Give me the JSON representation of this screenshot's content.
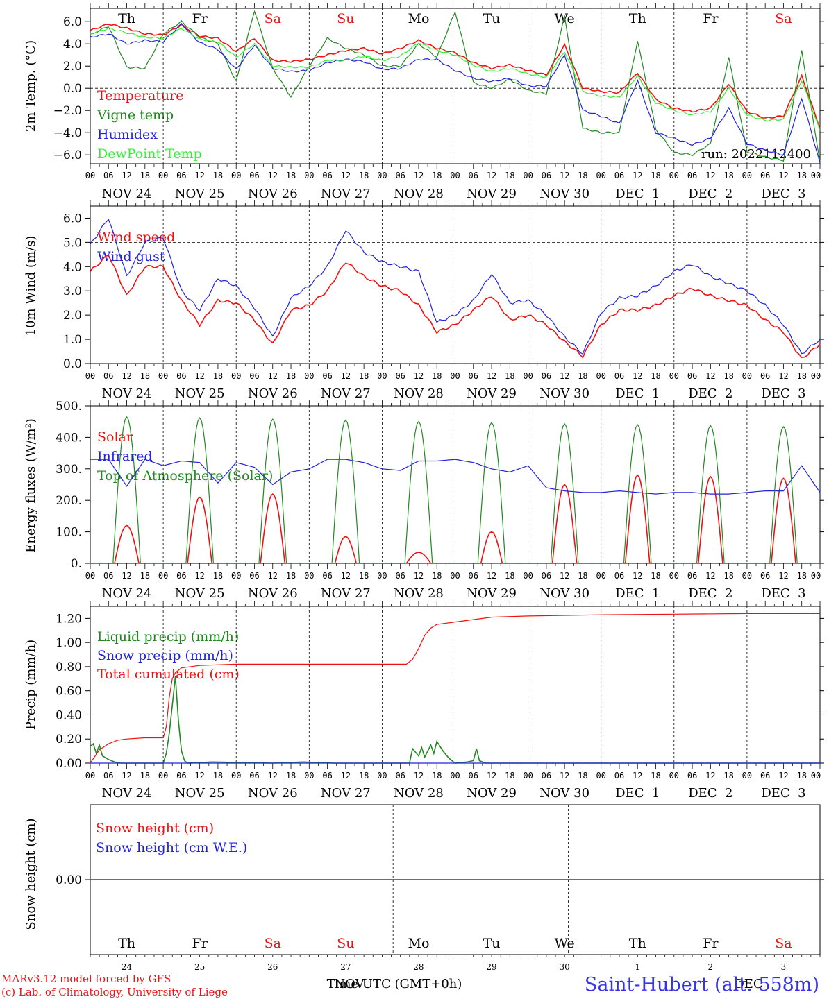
{
  "colors": {
    "temperature": "#ee1111",
    "vigne": "#228822",
    "humidex": "#2222dd",
    "dewpoint": "#33ee33",
    "wind_speed": "#ee1111",
    "wind_gust": "#2222dd",
    "solar": "#ee1111",
    "infrared": "#2222dd",
    "toa": "#228822",
    "liquid": "#228822",
    "snow": "#2222dd",
    "total": "#ee1111",
    "snow_cm": "#ee1111",
    "snow_we": "#2222dd",
    "snow_line": "#8833aa",
    "weekend": "#ee1111",
    "station": "#3333ee"
  },
  "days": {
    "weekday_labels": [
      "Th",
      "Fr",
      "Sa",
      "Su",
      "Mo",
      "Tu",
      "We",
      "Th",
      "Fr",
      "Sa"
    ],
    "weekend_flags": [
      false,
      false,
      true,
      true,
      false,
      false,
      false,
      false,
      false,
      true
    ],
    "date_labels": [
      "NOV 24",
      "NOV 25",
      "NOV 26",
      "NOV 27",
      "NOV 28",
      "NOV 29",
      "NOV 30",
      "DEC  1",
      "DEC  2",
      "DEC  3"
    ],
    "hour_labels": [
      "00",
      "06",
      "12",
      "18"
    ],
    "final_hour_label": "00",
    "day_numbers": [
      "24",
      "25",
      "26",
      "27",
      "28",
      "29",
      "30",
      "1",
      "2",
      "3"
    ]
  },
  "footer": {
    "model_line": "MARv3.12 model forced by GFS",
    "copyright_line": "(c) Lab. of Climatology, University of Liege",
    "time_axis_label": "Time UTC (GMT+0h)",
    "overlap_month_left": "NOV",
    "overlap_month_right": "DEC",
    "station": "Saint-Hubert (alt. 558m)"
  },
  "chart_data": [
    {
      "type": "line",
      "ylabel": "2m Temp. (°C)",
      "ylim": [
        -6.8,
        7.2
      ],
      "yticks": [
        "6.0",
        "4.0",
        "2.0",
        "0.0",
        "−2.0",
        "−4.0",
        "−6.0"
      ],
      "ytick_values": [
        6,
        4,
        2,
        0,
        -2,
        -4,
        -6
      ],
      "reference_line": 0,
      "run_label": "run: 2022112400",
      "x_hours_from_start": [
        0,
        6,
        12,
        18,
        24,
        30,
        36,
        42,
        48,
        54,
        60,
        66,
        72,
        78,
        84,
        90,
        96,
        102,
        108,
        114,
        120,
        126,
        132,
        138,
        144,
        150,
        156,
        162,
        168,
        174,
        180,
        186,
        192,
        198,
        204,
        210,
        216,
        222,
        228,
        234,
        240
      ],
      "series": [
        {
          "name": "Temperature",
          "color_key": "temperature",
          "values": [
            5.2,
            5.8,
            5.4,
            4.9,
            4.8,
            5.7,
            4.7,
            4.5,
            3.3,
            4.5,
            2.5,
            2.4,
            2.6,
            3.0,
            3.4,
            3.6,
            3.1,
            3.6,
            4.3,
            3.6,
            3.2,
            2.3,
            1.8,
            2.1,
            1.6,
            1.2,
            3.9,
            0.0,
            -0.3,
            -0.4,
            1.4,
            -1.0,
            -1.8,
            -2.1,
            -1.8,
            0.4,
            -2.1,
            -2.7,
            -2.5,
            1.1,
            -3.6
          ]
        },
        {
          "name": "Vigne temp",
          "color_key": "vigne",
          "values": [
            4.8,
            5.6,
            1.9,
            1.8,
            4.9,
            6.0,
            4.6,
            4.0,
            0.6,
            7.0,
            1.8,
            -0.8,
            2.0,
            4.5,
            3.6,
            3.0,
            2.0,
            2.0,
            4.0,
            2.8,
            6.9,
            0.5,
            0.0,
            0.8,
            -0.2,
            -0.5,
            6.5,
            -3.6,
            -4.0,
            -4.0,
            4.3,
            -3.7,
            -5.8,
            -6.0,
            -5.0,
            2.8,
            -5.7,
            -6.2,
            -6.5,
            3.4,
            -6.6
          ]
        },
        {
          "name": "Humidex",
          "color_key": "humidex",
          "values": [
            4.6,
            4.9,
            4.0,
            4.3,
            4.2,
            5.8,
            4.1,
            3.5,
            1.7,
            3.9,
            1.8,
            1.5,
            1.6,
            2.3,
            2.6,
            2.4,
            1.7,
            1.8,
            2.6,
            2.6,
            1.6,
            0.9,
            0.6,
            0.9,
            0.2,
            0.2,
            3.0,
            -2.0,
            -2.5,
            -3.2,
            0.7,
            -4.0,
            -4.5,
            -5.1,
            -4.5,
            -1.8,
            -5.0,
            -5.6,
            -6.0,
            -0.9,
            -6.7
          ]
        },
        {
          "name": "DewPoint Temp",
          "color_key": "dewpoint",
          "values": [
            4.9,
            5.4,
            5.0,
            4.6,
            4.5,
            5.4,
            4.4,
            4.2,
            2.8,
            4.0,
            2.0,
            1.9,
            1.9,
            2.5,
            2.5,
            2.9,
            2.5,
            2.9,
            4.1,
            3.4,
            3.0,
            2.1,
            1.5,
            1.8,
            1.3,
            1.0,
            3.3,
            -0.3,
            -0.7,
            -0.8,
            1.1,
            -1.3,
            -2.0,
            -2.4,
            -2.1,
            0.0,
            -2.4,
            -2.9,
            -2.8,
            0.7,
            -3.8
          ]
        }
      ]
    },
    {
      "type": "line",
      "ylabel": "10m Wind (m/s)",
      "ylim": [
        0,
        6.5
      ],
      "yticks": [
        "6.0",
        "5.0",
        "4.0",
        "3.0",
        "2.0",
        "1.0",
        "0.0"
      ],
      "ytick_values": [
        6,
        5,
        4,
        3,
        2,
        1,
        0
      ],
      "reference_line": 5,
      "x_hours_from_start": [
        0,
        6,
        12,
        18,
        24,
        30,
        36,
        42,
        48,
        54,
        60,
        66,
        72,
        78,
        84,
        90,
        96,
        102,
        108,
        114,
        120,
        126,
        132,
        138,
        144,
        150,
        156,
        162,
        168,
        174,
        180,
        186,
        192,
        198,
        204,
        210,
        216,
        222,
        228,
        234,
        240
      ],
      "series": [
        {
          "name": "Wind speed",
          "color_key": "wind_speed",
          "values": [
            3.8,
            4.5,
            2.8,
            4.0,
            4.0,
            2.6,
            1.6,
            2.6,
            2.5,
            1.8,
            0.8,
            2.2,
            2.4,
            3.0,
            4.2,
            3.6,
            3.2,
            3.0,
            2.4,
            1.3,
            1.6,
            2.2,
            2.8,
            1.8,
            2.0,
            1.6,
            0.9,
            0.3,
            1.6,
            2.2,
            2.2,
            2.4,
            2.8,
            3.1,
            2.8,
            2.6,
            2.4,
            1.8,
            1.3,
            0.2,
            0.8
          ]
        },
        {
          "name": "Wind gust",
          "color_key": "wind_gust",
          "values": [
            4.9,
            6.0,
            3.6,
            5.0,
            5.2,
            3.0,
            2.2,
            3.5,
            3.2,
            2.3,
            1.1,
            2.7,
            3.2,
            4.0,
            5.5,
            4.6,
            4.2,
            4.0,
            3.8,
            1.7,
            2.0,
            2.6,
            3.7,
            2.5,
            2.6,
            2.0,
            1.1,
            0.4,
            2.1,
            2.7,
            2.8,
            3.2,
            3.8,
            4.1,
            3.6,
            3.3,
            3.0,
            2.4,
            1.6,
            0.4,
            1.0
          ]
        }
      ]
    },
    {
      "type": "line",
      "ylabel": "Energy fluxes (W/m²)",
      "ylim": [
        0,
        500
      ],
      "yticks": [
        "500.",
        "400.",
        "300.",
        "200.",
        "100.",
        "0."
      ],
      "ytick_values": [
        500,
        400,
        300,
        200,
        100,
        0
      ],
      "x_hours_from_start": [
        0,
        6,
        12,
        18,
        24,
        30,
        36,
        42,
        48,
        54,
        60,
        66,
        72,
        78,
        84,
        90,
        96,
        102,
        108,
        114,
        120,
        126,
        132,
        138,
        144,
        150,
        156,
        162,
        168,
        174,
        180,
        186,
        192,
        198,
        204,
        210,
        216,
        222,
        228,
        234,
        240
      ],
      "daily_peak_hour": 12,
      "series": [
        {
          "name": "Solar",
          "color_key": "solar",
          "daily_peaks": [
            120,
            210,
            220,
            85,
            35,
            100,
            250,
            280,
            275,
            270
          ],
          "daily_half_width_hours": [
            4,
            4,
            4,
            3.5,
            4,
            3.5,
            4,
            4,
            4,
            4
          ]
        },
        {
          "name": "Infrared",
          "color_key": "infrared",
          "values": [
            330,
            330,
            245,
            330,
            310,
            325,
            320,
            255,
            320,
            305,
            250,
            290,
            300,
            330,
            330,
            320,
            300,
            295,
            325,
            325,
            330,
            320,
            300,
            290,
            310,
            240,
            230,
            225,
            225,
            230,
            225,
            220,
            225,
            225,
            220,
            220,
            225,
            230,
            230,
            310,
            225
          ]
        },
        {
          "name": "Top of Atmosphere (Solar)",
          "color_key": "toa",
          "daily_peaks": [
            465,
            462,
            458,
            455,
            450,
            447,
            443,
            440,
            437,
            434
          ],
          "daily_half_width_hours": [
            4.5,
            4.5,
            4.5,
            4.5,
            4.5,
            4.5,
            4.5,
            4.5,
            4.5,
            4.5
          ]
        }
      ]
    },
    {
      "type": "line",
      "ylabel": "Precip (mm/h)",
      "ylim": [
        0,
        1.3
      ],
      "yticks": [
        "1.20",
        "1.00",
        "0.80",
        "0.60",
        "0.40",
        "0.20",
        "0.00"
      ],
      "ytick_values": [
        1.2,
        1.0,
        0.8,
        0.6,
        0.4,
        0.2,
        0.0
      ],
      "series": [
        {
          "name": "Liquid precip (mm/h)",
          "color_key": "liquid",
          "x": [
            0,
            1,
            2,
            3,
            4,
            6,
            8,
            10,
            24,
            25,
            26,
            27,
            28,
            29,
            30,
            31,
            32,
            40,
            60,
            70,
            80,
            90,
            100,
            105,
            106,
            108,
            109,
            110,
            112,
            113,
            114,
            116,
            118,
            120,
            124,
            126,
            127,
            128,
            130,
            140,
            160,
            200,
            240
          ],
          "values": [
            0.14,
            0.16,
            0.08,
            0.15,
            0.06,
            0.03,
            0.01,
            0.0,
            0.0,
            0.08,
            0.25,
            0.48,
            0.72,
            0.35,
            0.1,
            0.02,
            0.0,
            0.01,
            0.0,
            0.01,
            0.0,
            0.0,
            0.0,
            0.0,
            0.12,
            0.06,
            0.13,
            0.05,
            0.15,
            0.08,
            0.18,
            0.1,
            0.04,
            0.0,
            0.01,
            0.02,
            0.12,
            0.02,
            0.0,
            0.0,
            0.0,
            0.0,
            0.0
          ]
        },
        {
          "name": "Snow precip (mm/h)",
          "color_key": "snow",
          "x": [
            0,
            240
          ],
          "values": [
            0.0,
            0.0
          ]
        },
        {
          "name": "Total cumulated (cm)",
          "color_key": "total",
          "x": [
            0,
            3,
            6,
            9,
            12,
            18,
            24,
            25,
            26,
            27,
            28,
            29,
            30,
            36,
            48,
            60,
            72,
            84,
            96,
            104,
            106,
            108,
            110,
            112,
            114,
            120,
            132,
            144,
            168,
            192,
            216,
            240
          ],
          "values": [
            0.0,
            0.11,
            0.16,
            0.19,
            0.2,
            0.21,
            0.21,
            0.3,
            0.55,
            0.7,
            0.75,
            0.77,
            0.79,
            0.81,
            0.82,
            0.82,
            0.82,
            0.82,
            0.82,
            0.82,
            0.86,
            0.95,
            1.06,
            1.12,
            1.15,
            1.17,
            1.21,
            1.22,
            1.23,
            1.235,
            1.24,
            1.24
          ]
        }
      ]
    },
    {
      "type": "line",
      "ylabel": "Snow height (cm)",
      "ylim": [
        -1,
        1
      ],
      "yticks": [
        "0.00"
      ],
      "ytick_values": [
        0
      ],
      "series": [
        {
          "name": "Snow height (cm)",
          "color_key": "snow_cm",
          "x": [
            0,
            240
          ],
          "values": [
            0,
            0
          ]
        },
        {
          "name": "Snow height (cm W.E.)",
          "color_key": "snow_we",
          "x": [
            0,
            240
          ],
          "values": [
            0,
            0
          ]
        }
      ]
    }
  ]
}
